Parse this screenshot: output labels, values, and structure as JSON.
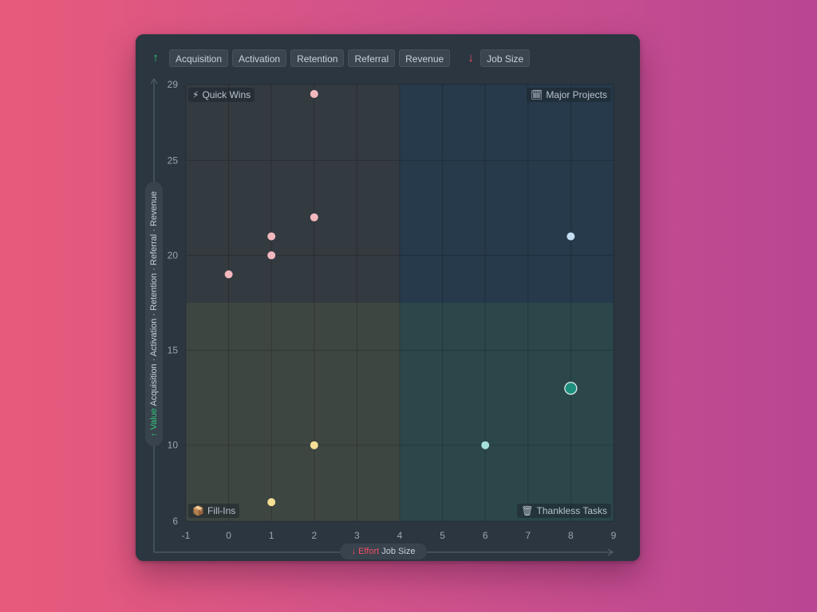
{
  "toolbar": {
    "value_arrow": "↑",
    "value_fields": [
      "Acquisition",
      "Activation",
      "Retention",
      "Referral",
      "Revenue"
    ],
    "effort_arrow": "↓",
    "effort_fields": [
      "Job Size"
    ]
  },
  "quadrants": {
    "top_left": {
      "icon": "⚡",
      "label": "Quick Wins"
    },
    "top_right": {
      "icon": "🗓",
      "label": "Major Projects"
    },
    "bottom_left": {
      "icon": "📦",
      "label": "Fill-Ins"
    },
    "bottom_right": {
      "icon": "🗑",
      "label": "Thankless Tasks"
    }
  },
  "axis_pills": {
    "y": {
      "arrow": "↑",
      "label": "Value",
      "fields": "Acquisition · Activation · Retention · Referral · Revenue"
    },
    "x": {
      "arrow": "↓",
      "label": "Effort",
      "fields": "Job Size"
    }
  },
  "colors": {
    "quick_wins": "#f2b8bd",
    "major_projects": "#c4dcf2",
    "fill_ins": "#f6df95",
    "thankless": "#a5e2db",
    "selected": "#1f8f7e",
    "value_accent": "#34c77b",
    "effort_accent": "#ef4f62"
  },
  "chart_data": {
    "type": "scatter",
    "title": "",
    "xlabel": "Effort Job Size",
    "ylabel": "Value Acquisition · Activation · Retention · Referral · Revenue",
    "xlim": [
      -1,
      9
    ],
    "ylim": [
      6,
      29
    ],
    "x_ticks": [
      "-1",
      "0",
      "1",
      "2",
      "3",
      "4",
      "5",
      "6",
      "7",
      "8",
      "9"
    ],
    "y_ticks": [
      "6",
      "10",
      "15",
      "20",
      "25",
      "29"
    ],
    "quadrant_split": {
      "x": 4,
      "y": 17.5
    },
    "grid": true,
    "points": [
      {
        "x": 2,
        "y": 28.5,
        "quadrant": "quick_wins"
      },
      {
        "x": 2,
        "y": 22,
        "quadrant": "quick_wins"
      },
      {
        "x": 1,
        "y": 21,
        "quadrant": "quick_wins"
      },
      {
        "x": 1,
        "y": 20,
        "quadrant": "quick_wins"
      },
      {
        "x": 0,
        "y": 19,
        "quadrant": "quick_wins"
      },
      {
        "x": 8,
        "y": 21,
        "quadrant": "major_projects"
      },
      {
        "x": 8,
        "y": 13,
        "quadrant": "thankless",
        "selected": true
      },
      {
        "x": 6,
        "y": 10,
        "quadrant": "thankless"
      },
      {
        "x": 2,
        "y": 10,
        "quadrant": "fill_ins"
      },
      {
        "x": 1,
        "y": 7,
        "quadrant": "fill_ins"
      }
    ]
  }
}
